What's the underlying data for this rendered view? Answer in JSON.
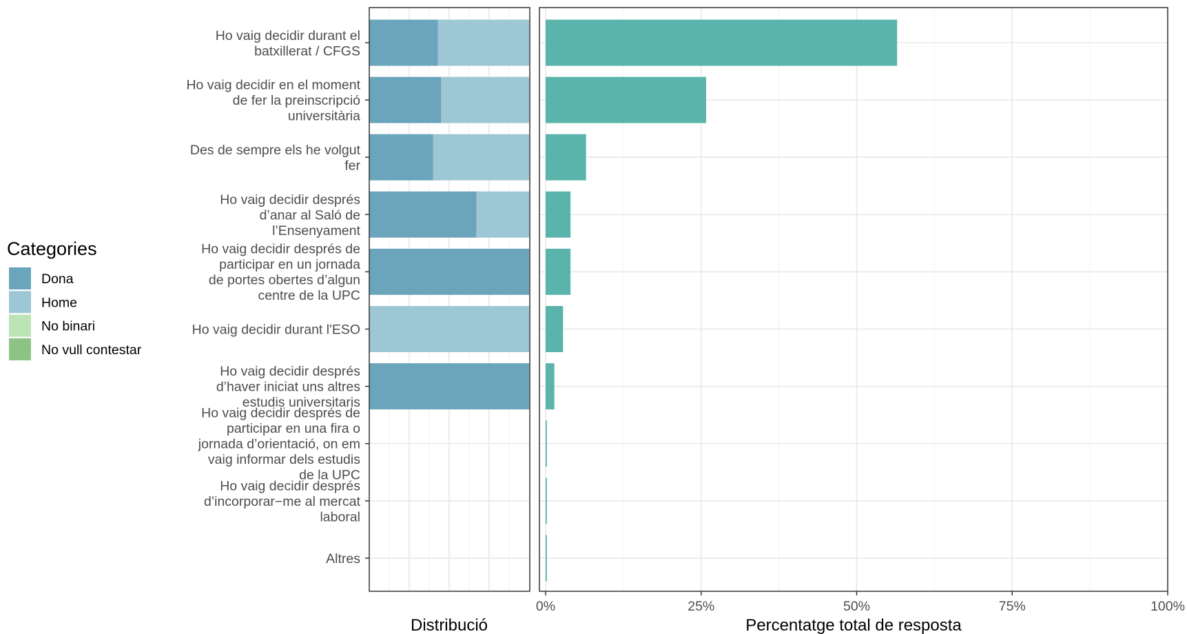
{
  "legend": {
    "title": "Categories",
    "items": [
      {
        "label": "Dona",
        "color": "#6BA5BB"
      },
      {
        "label": "Home",
        "color": "#9EC7D6"
      },
      {
        "label": "No binari",
        "color": "#BCE4B5"
      },
      {
        "label": "No vull contestar",
        "color": "#8CC485"
      }
    ]
  },
  "chart_data": [
    {
      "type": "bar",
      "orientation": "horizontal",
      "stacked": "percent",
      "xlabel": "Distribució",
      "categories": [
        [
          "Ho vaig decidir durant el",
          "batxillerat / CFGS"
        ],
        [
          "Ho vaig decidir en el moment",
          "de fer la preinscripció",
          "universitària"
        ],
        [
          "Des de sempre els he volgut",
          "fer"
        ],
        [
          "Ho vaig decidir després",
          "d’anar al Saló de",
          "l’Ensenyament"
        ],
        [
          "Ho vaig decidir després de",
          "participar en un jornada",
          "de portes obertes d’algun",
          "centre de la UPC"
        ],
        [
          "Ho vaig decidir durant l'ESO"
        ],
        [
          "Ho vaig decidir després",
          "d’haver iniciat uns altres",
          "estudis universitaris"
        ],
        [
          "Ho vaig decidir després de",
          "participar en una fira o",
          "jornada d’orientació, on em",
          "vaig informar dels estudis",
          "de la UPC"
        ],
        [
          "Ho vaig decidir després",
          "d’incorporar−me al mercat",
          "laboral"
        ],
        [
          "Altres"
        ]
      ],
      "series": [
        {
          "name": "Dona",
          "values": [
            0.43,
            0.45,
            0.4,
            0.67,
            1.0,
            0.0,
            1.0,
            0,
            0,
            0
          ]
        },
        {
          "name": "Home",
          "values": [
            0.57,
            0.55,
            0.6,
            0.33,
            0.0,
            1.0,
            0.0,
            0,
            0,
            0
          ]
        },
        {
          "name": "No binari",
          "values": [
            0,
            0,
            0,
            0,
            0,
            0,
            0,
            0,
            0,
            0
          ]
        },
        {
          "name": "No vull contestar",
          "values": [
            0,
            0,
            0,
            0,
            0,
            0,
            0,
            0,
            0,
            0
          ]
        }
      ],
      "grid": true
    },
    {
      "type": "bar",
      "orientation": "horizontal",
      "xlabel": "Percentatge total de resposta",
      "xlim": [
        0,
        100
      ],
      "xticks": [
        "0%",
        "25%",
        "50%",
        "75%",
        "100%"
      ],
      "values": [
        56.5,
        25.8,
        6.5,
        4.0,
        4.0,
        2.8,
        1.4,
        0.2,
        0.2,
        0.2
      ],
      "color": "#5AB4AC",
      "grid": true
    }
  ]
}
